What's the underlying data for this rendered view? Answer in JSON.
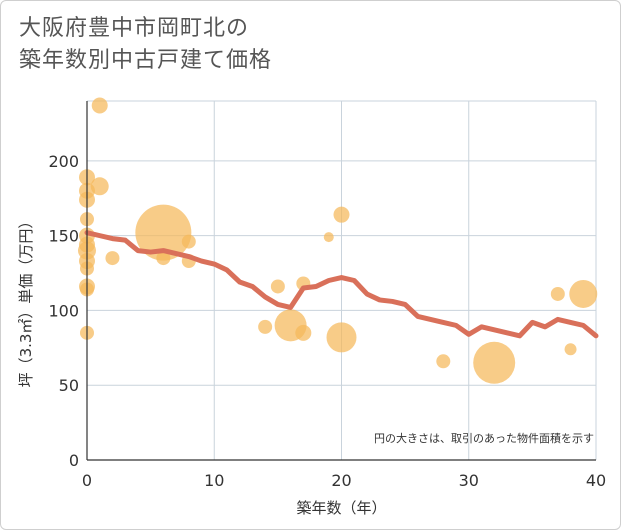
{
  "title_line1": "大阪府豊中市岡町北の",
  "title_line2": "築年数別中古戸建て価格",
  "chart_data": {
    "type": "scatter",
    "xlabel": "築年数（年）",
    "ylabel": "坪（3.3㎡）単価（万円）",
    "xlim": [
      0,
      40
    ],
    "ylim": [
      0,
      240
    ],
    "xticks": [
      0,
      10,
      20,
      30,
      40
    ],
    "yticks": [
      0,
      50,
      100,
      150,
      200
    ],
    "grid": true,
    "note": "円の大きさは、取引のあった物件面積を示す",
    "colors": {
      "bubble": "#f5b85a",
      "line": "#d9705a",
      "grid": "#c9d3dc"
    },
    "bubbles": [
      {
        "x": 0,
        "y": 189,
        "size": 8
      },
      {
        "x": 0,
        "y": 180,
        "size": 8
      },
      {
        "x": 0,
        "y": 174,
        "size": 8
      },
      {
        "x": 0,
        "y": 161,
        "size": 7
      },
      {
        "x": 0,
        "y": 150,
        "size": 8
      },
      {
        "x": 0,
        "y": 144,
        "size": 8
      },
      {
        "x": 0,
        "y": 140,
        "size": 9
      },
      {
        "x": 0,
        "y": 133,
        "size": 8
      },
      {
        "x": 0,
        "y": 128,
        "size": 7
      },
      {
        "x": 0,
        "y": 116,
        "size": 8
      },
      {
        "x": 0,
        "y": 114,
        "size": 7
      },
      {
        "x": 0,
        "y": 85,
        "size": 7
      },
      {
        "x": 1,
        "y": 237,
        "size": 8
      },
      {
        "x": 1,
        "y": 183,
        "size": 9
      },
      {
        "x": 2,
        "y": 135,
        "size": 7
      },
      {
        "x": 6,
        "y": 152,
        "size": 28
      },
      {
        "x": 6,
        "y": 135,
        "size": 7
      },
      {
        "x": 8,
        "y": 146,
        "size": 7
      },
      {
        "x": 8,
        "y": 133,
        "size": 7
      },
      {
        "x": 14,
        "y": 89,
        "size": 7
      },
      {
        "x": 15,
        "y": 116,
        "size": 7
      },
      {
        "x": 16,
        "y": 90,
        "size": 16
      },
      {
        "x": 17,
        "y": 118,
        "size": 7
      },
      {
        "x": 17,
        "y": 85,
        "size": 8
      },
      {
        "x": 19,
        "y": 149,
        "size": 5
      },
      {
        "x": 20,
        "y": 164,
        "size": 8
      },
      {
        "x": 20,
        "y": 82,
        "size": 15
      },
      {
        "x": 28,
        "y": 66,
        "size": 7
      },
      {
        "x": 32,
        "y": 65,
        "size": 21
      },
      {
        "x": 37,
        "y": 111,
        "size": 7
      },
      {
        "x": 38,
        "y": 74,
        "size": 6
      },
      {
        "x": 39,
        "y": 111,
        "size": 14
      }
    ],
    "trend": [
      {
        "x": 0,
        "y": 152
      },
      {
        "x": 1,
        "y": 150
      },
      {
        "x": 2,
        "y": 148
      },
      {
        "x": 3,
        "y": 147
      },
      {
        "x": 4,
        "y": 140
      },
      {
        "x": 5,
        "y": 139
      },
      {
        "x": 6,
        "y": 140
      },
      {
        "x": 7,
        "y": 138
      },
      {
        "x": 8,
        "y": 136
      },
      {
        "x": 9,
        "y": 133
      },
      {
        "x": 10,
        "y": 131
      },
      {
        "x": 11,
        "y": 127
      },
      {
        "x": 12,
        "y": 119
      },
      {
        "x": 13,
        "y": 116
      },
      {
        "x": 14,
        "y": 109
      },
      {
        "x": 15,
        "y": 104
      },
      {
        "x": 16,
        "y": 102
      },
      {
        "x": 17,
        "y": 115
      },
      {
        "x": 18,
        "y": 116
      },
      {
        "x": 19,
        "y": 120
      },
      {
        "x": 20,
        "y": 122
      },
      {
        "x": 21,
        "y": 120
      },
      {
        "x": 22,
        "y": 111
      },
      {
        "x": 23,
        "y": 107
      },
      {
        "x": 24,
        "y": 106
      },
      {
        "x": 25,
        "y": 104
      },
      {
        "x": 26,
        "y": 96
      },
      {
        "x": 27,
        "y": 94
      },
      {
        "x": 28,
        "y": 92
      },
      {
        "x": 29,
        "y": 90
      },
      {
        "x": 30,
        "y": 84
      },
      {
        "x": 31,
        "y": 89
      },
      {
        "x": 32,
        "y": 87
      },
      {
        "x": 33,
        "y": 85
      },
      {
        "x": 34,
        "y": 83
      },
      {
        "x": 35,
        "y": 92
      },
      {
        "x": 36,
        "y": 89
      },
      {
        "x": 37,
        "y": 94
      },
      {
        "x": 38,
        "y": 92
      },
      {
        "x": 39,
        "y": 90
      },
      {
        "x": 40,
        "y": 83
      }
    ]
  }
}
